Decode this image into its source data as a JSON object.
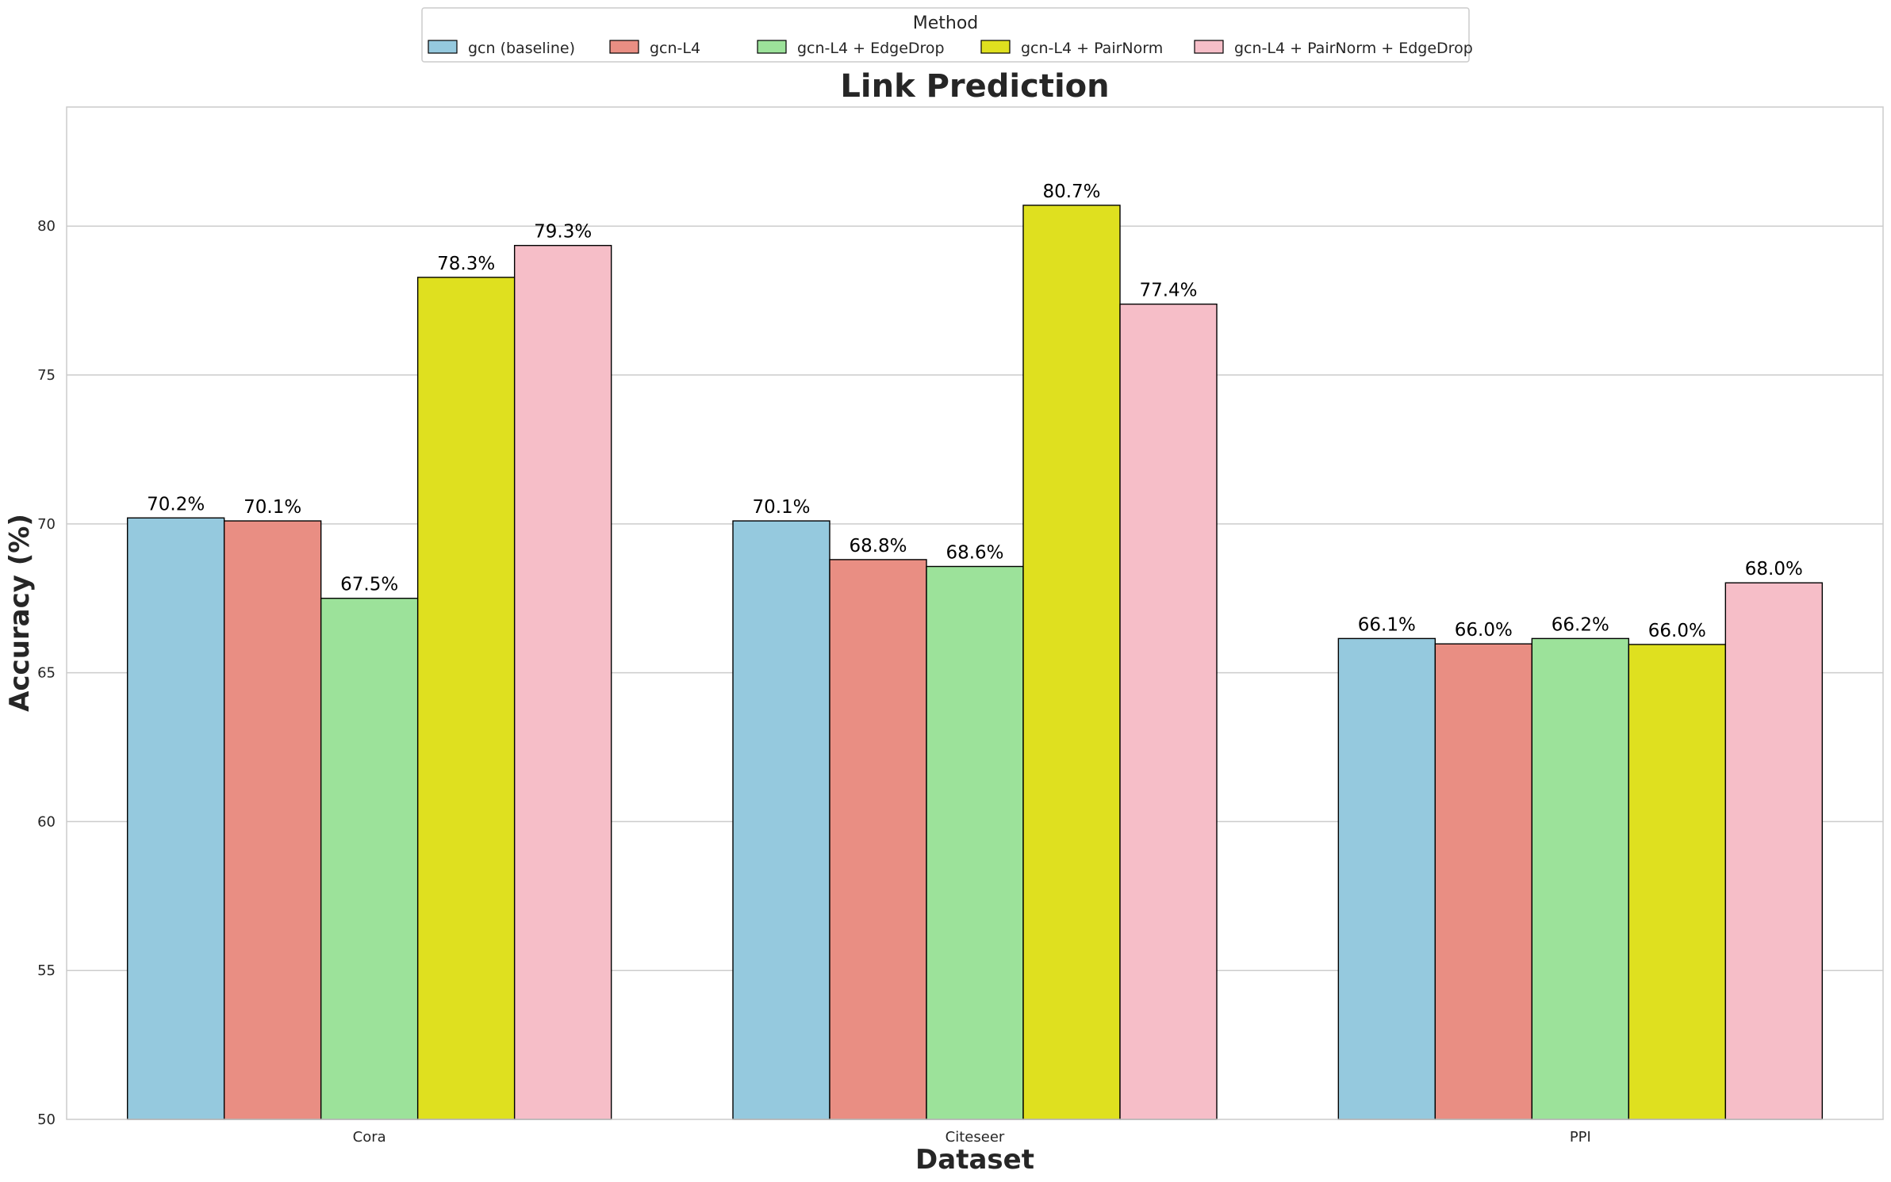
{
  "chart_data": {
    "type": "bar",
    "title": "Link Prediction",
    "xlabel": "Dataset",
    "ylabel": "Accuracy (%)",
    "ylim": [
      50,
      84
    ],
    "yticks": [
      50,
      55,
      60,
      65,
      70,
      75,
      80
    ],
    "grid": "horizontal",
    "categories": [
      "Cora",
      "Citeseer",
      "PPI"
    ],
    "legend": {
      "title": "Method",
      "placement": "top-center"
    },
    "series": [
      {
        "name": "gcn (baseline)",
        "color": "#95c9de",
        "values": [
          70.2,
          70.1,
          66.15
        ],
        "labels": [
          "70.2%",
          "70.1%",
          "66.1%"
        ]
      },
      {
        "name": "gcn-L4",
        "color": "#e98e83",
        "values": [
          70.1,
          68.8,
          65.97
        ],
        "labels": [
          "70.1%",
          "68.8%",
          "66.0%"
        ]
      },
      {
        "name": "gcn-L4 + EdgeDrop",
        "color": "#9ce29a",
        "values": [
          67.5,
          68.57,
          66.15
        ],
        "labels": [
          "67.5%",
          "68.6%",
          "66.2%"
        ]
      },
      {
        "name": "gcn-L4 + PairNorm",
        "color": "#dfe01f",
        "values": [
          78.28,
          80.7,
          65.95
        ],
        "labels": [
          "78.3%",
          "80.7%",
          "66.0%"
        ]
      },
      {
        "name": "gcn-L4 + PairNorm + EdgeDrop",
        "color": "#f6bec8",
        "values": [
          79.35,
          77.38,
          68.02
        ],
        "labels": [
          "79.3%",
          "77.4%",
          "68.0%"
        ]
      }
    ]
  }
}
